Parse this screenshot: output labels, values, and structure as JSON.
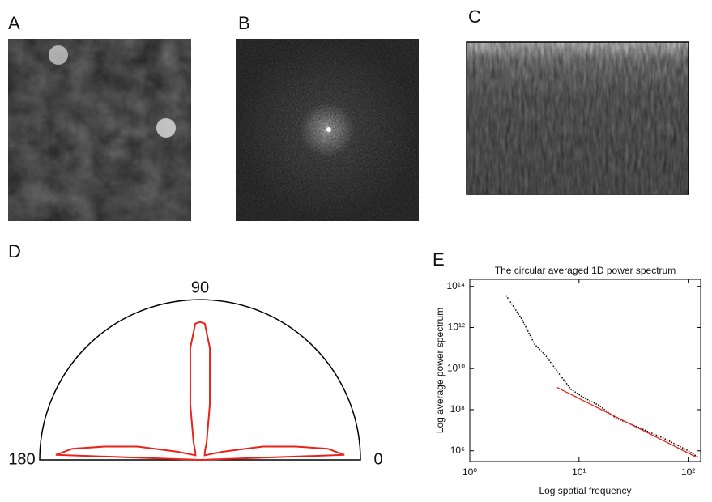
{
  "panel_labels": [
    "A",
    "B",
    "C",
    "D",
    "E"
  ],
  "chart_data": [
    {
      "type": "polar",
      "angles": [
        0,
        2,
        5,
        8,
        12,
        20,
        30,
        45,
        60,
        70,
        80,
        85,
        88,
        90,
        92,
        95,
        100,
        110,
        120,
        135,
        150,
        160,
        168,
        172,
        175,
        178,
        180
      ],
      "series": [
        {
          "color": "#e8231c",
          "values": [
            0.0,
            0.9,
            0.8,
            0.6,
            0.4,
            0.15,
            0.07,
            0.04,
            0.06,
            0.12,
            0.35,
            0.7,
            0.85,
            0.86,
            0.85,
            0.7,
            0.35,
            0.12,
            0.06,
            0.04,
            0.07,
            0.15,
            0.4,
            0.6,
            0.8,
            0.9,
            0.0
          ]
        }
      ],
      "rlim": [
        0,
        1
      ],
      "thetaticks": [
        0,
        90,
        180
      ]
    },
    {
      "type": "line",
      "title": "The circular averaged 1D power spectrum",
      "xlabel": "Log spatial frequency",
      "ylabel": "Log average power spectrum",
      "log_x": true,
      "log_y": true,
      "xlim": [
        1,
        130
      ],
      "ylim": [
        300000,
        220000000000000
      ],
      "xticks": [
        {
          "value": 1,
          "label": "10⁰"
        },
        {
          "value": 10,
          "label": "10¹"
        },
        {
          "value": 100,
          "label": "10²"
        }
      ],
      "yticks": [
        {
          "value": 1000000,
          "label": "10⁶"
        },
        {
          "value": 100000000,
          "label": "10⁸"
        },
        {
          "value": 10000000000,
          "label": "10¹⁰"
        },
        {
          "value": 1000000000000,
          "label": "10¹²"
        },
        {
          "value": 100000000000000,
          "label": "10¹⁴"
        }
      ],
      "series": [
        {
          "color": "#000000",
          "style": "dotted",
          "x": [
            2.15,
            3.0,
            3.9,
            5.0,
            6.5,
            8.4,
            10.9,
            15.3,
            21.5,
            35.9,
            60,
            100,
            122
          ],
          "values": [
            36000000000000,
            2500000000000,
            160000000000,
            40000000000,
            6000000000,
            1000000000,
            400000000,
            160000000,
            40000000,
            13000000,
            4000000,
            1000000,
            500000
          ]
        },
        {
          "color": "#e8231c",
          "style": "solid",
          "x": [
            6.3,
            118
          ],
          "values": [
            1200000000,
            500000
          ]
        }
      ]
    }
  ]
}
